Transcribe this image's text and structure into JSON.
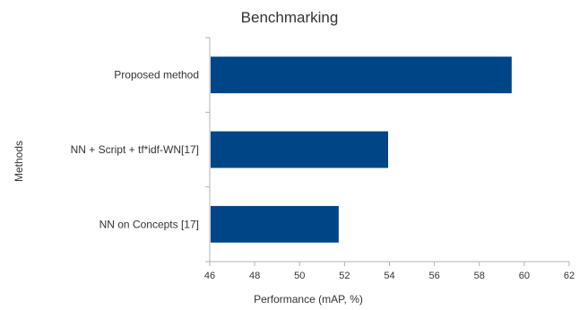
{
  "chart_data": {
    "type": "bar",
    "orientation": "horizontal",
    "title": "Benchmarking",
    "xlabel": "Performance (mAP, %)",
    "ylabel": "Methods",
    "categories": [
      "Proposed method",
      "NN + Script + tf*idf-WN[17]",
      "NN on Concepts [17]"
    ],
    "values": [
      59.4,
      53.9,
      51.7
    ],
    "xlim": [
      46,
      62
    ],
    "xticks": [
      46,
      48,
      50,
      52,
      54,
      56,
      58,
      60,
      62
    ],
    "grid": false,
    "legend": "none",
    "bar_color": "#004586"
  }
}
